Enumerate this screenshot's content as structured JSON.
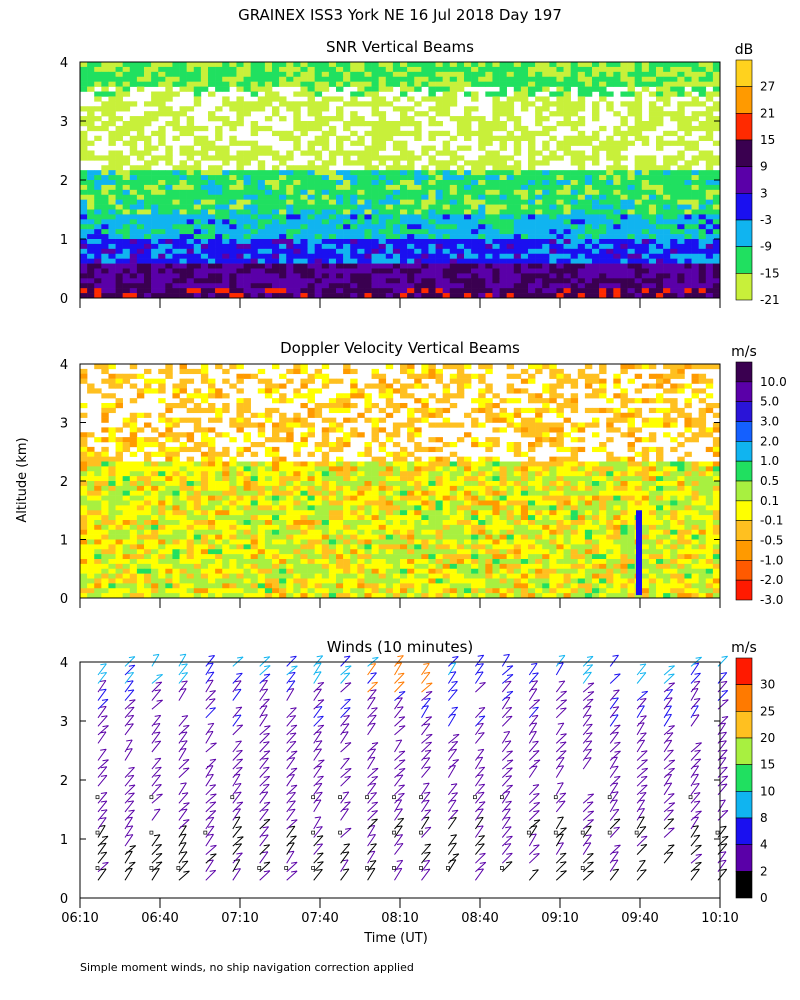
{
  "figure": {
    "title": "GRAINEX ISS3 York NE  16 Jul 2018 Day 197",
    "ylabel": "Altitude (km)",
    "xlabel": "Time (UT)",
    "footnote": "Simple moment winds, no ship navigation correction applied",
    "time_ticks": [
      "06:10",
      "06:40",
      "07:10",
      "07:40",
      "08:10",
      "08:40",
      "09:10",
      "09:40",
      "10:10"
    ]
  },
  "chart_data": [
    {
      "type": "heatmap",
      "title": "SNR Vertical Beams",
      "x_range": [
        "06:10",
        "10:10"
      ],
      "ylim": [
        0,
        4
      ],
      "y_ticks": [
        "0",
        "1",
        "2",
        "3",
        "4"
      ],
      "colorbar": {
        "unit": "dB",
        "labels": [
          "27",
          "21",
          "15",
          "9",
          "3",
          "-3",
          "-9",
          "-15",
          "-21"
        ],
        "colors": [
          "#ffd21e",
          "#ff9a00",
          "#ff2a00",
          "#3a0050",
          "#5a00a8",
          "#1a10f0",
          "#10b4f0",
          "#20e060",
          "#c8f03a"
        ]
      },
      "layers": [
        {
          "altitude_km": [
            0.0,
            0.5
          ],
          "approx_dB": 9
        },
        {
          "altitude_km": [
            0.5,
            1.0
          ],
          "approx_dB": -3
        },
        {
          "altitude_km": [
            1.0,
            1.5
          ],
          "approx_dB": -9
        },
        {
          "altitude_km": [
            1.5,
            2.5
          ],
          "approx_dB": -15
        },
        {
          "altitude_km": [
            2.5,
            3.5
          ],
          "approx_dB": -21
        },
        {
          "altitude_km": [
            3.5,
            4.0
          ],
          "approx_dB": -15
        }
      ]
    },
    {
      "type": "heatmap",
      "title": "Doppler Velocity Vertical Beams",
      "x_range": [
        "06:10",
        "10:10"
      ],
      "ylim": [
        0,
        4
      ],
      "y_ticks": [
        "0",
        "1",
        "2",
        "3",
        "4"
      ],
      "colorbar": {
        "unit": "m/s",
        "labels": [
          "10.0",
          "5.0",
          "3.0",
          "2.0",
          "1.0",
          "0.5",
          "0.1",
          "-0.1",
          "-0.5",
          "-1.0",
          "-2.0",
          "-3.0"
        ],
        "colors": [
          "#3a0050",
          "#5a00a8",
          "#2a14d8",
          "#1460ff",
          "#10b4f0",
          "#20e060",
          "#a8f040",
          "#ffff00",
          "#ffc020",
          "#ff9a00",
          "#ff5a00",
          "#ff1a00"
        ]
      }
    },
    {
      "type": "scatter",
      "title": "Winds (10 minutes)",
      "x_range": [
        "06:10",
        "10:10"
      ],
      "ylim": [
        0,
        4
      ],
      "y_ticks": [
        "0",
        "1",
        "2",
        "3",
        "4"
      ],
      "x": [
        "06:10",
        "06:20",
        "06:30",
        "06:40",
        "06:50",
        "07:00",
        "07:10",
        "07:20",
        "07:30",
        "07:40",
        "07:50",
        "08:00",
        "08:10",
        "08:20",
        "08:30",
        "08:40",
        "08:50",
        "09:00",
        "09:10",
        "09:20",
        "09:30",
        "09:40",
        "09:50",
        "10:00"
      ],
      "colorbar": {
        "unit": "m/s",
        "labels": [
          "30",
          "25",
          "20",
          "15",
          "10",
          "8",
          "4",
          "2",
          "0"
        ],
        "colors": [
          "#ff1a00",
          "#ff7a00",
          "#ffc020",
          "#a8f040",
          "#20e060",
          "#10b4f0",
          "#1a10f0",
          "#5a00a8",
          "#000000"
        ]
      }
    }
  ]
}
